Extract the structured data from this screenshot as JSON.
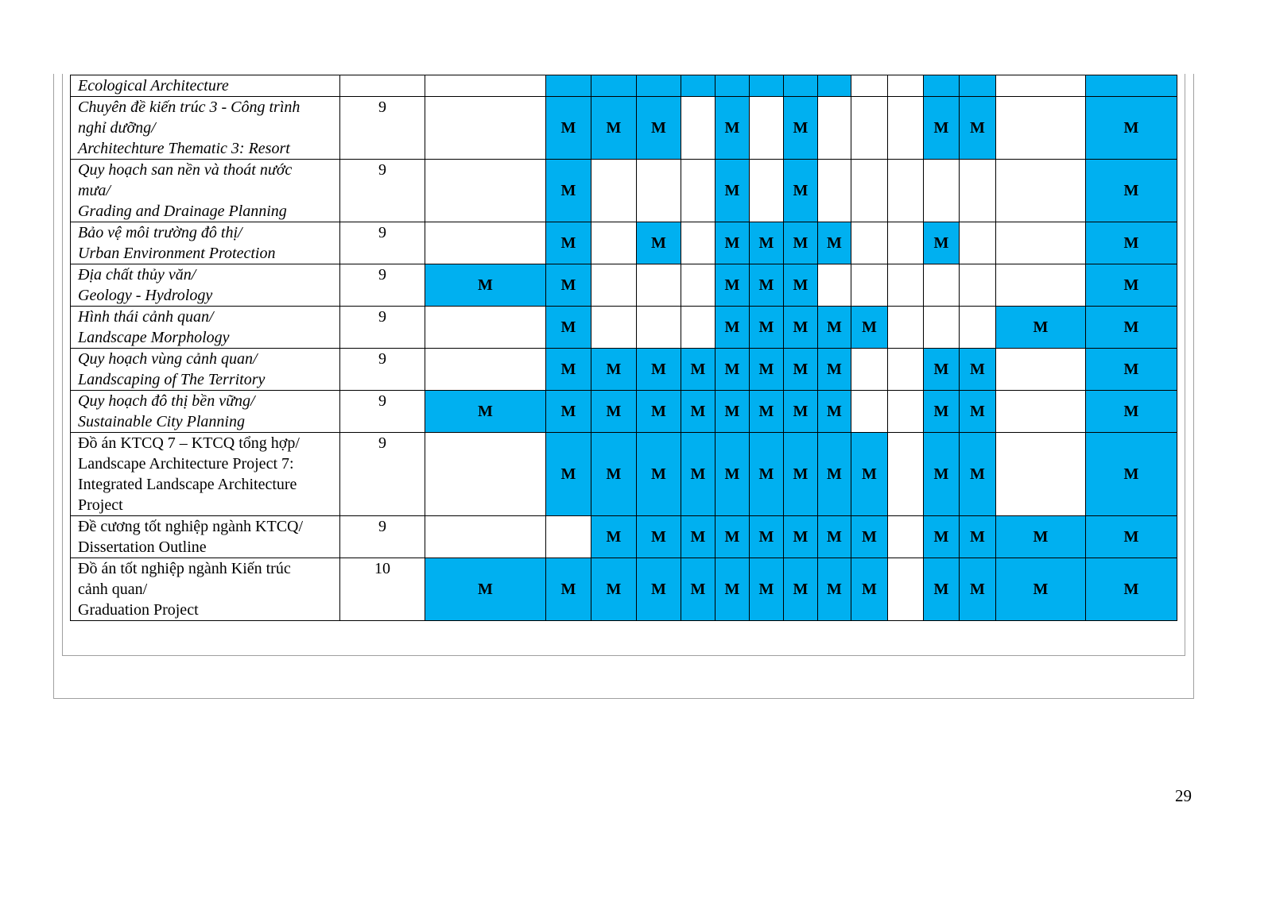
{
  "highlight_color": "#00B0F0",
  "mark_label": "M",
  "rows": [
    {
      "name": [
        "Ecological Architecture"
      ],
      "italic": true,
      "semester": "",
      "cells": [
        "",
        "",
        "",
        "",
        "",
        "",
        "",
        "",
        "",
        "",
        "",
        "",
        "",
        "",
        ""
      ],
      "filled": [
        false,
        true,
        true,
        true,
        true,
        true,
        true,
        true,
        true,
        false,
        false,
        true,
        true,
        false,
        true
      ]
    },
    {
      "name": [
        "Chuyên đề kiến trúc 3 - Công trình",
        "nghỉ dưỡng/",
        "Architechture Thematic 3: Resort"
      ],
      "italic": true,
      "semester": "9",
      "cells": [
        "",
        "M",
        "M",
        "M",
        "",
        "M",
        "",
        "M",
        "",
        "",
        "",
        "M",
        "M",
        "",
        "M"
      ]
    },
    {
      "name": [
        "Quy hoạch san nền và thoát nước",
        "mưa/",
        "Grading and Drainage Planning"
      ],
      "italic": true,
      "semester": "9",
      "cells": [
        "",
        "M",
        "",
        "",
        "",
        "M",
        "",
        "M",
        "",
        "",
        "",
        "",
        "",
        "",
        "M"
      ]
    },
    {
      "name": [
        "Bảo vệ môi trường đô thị/",
        "Urban Environment Protection"
      ],
      "italic": true,
      "semester": "9",
      "cells": [
        "",
        "M",
        "",
        "M",
        "",
        "M",
        "M",
        "M",
        "M",
        "",
        "",
        "M",
        "",
        "",
        "M"
      ]
    },
    {
      "name": [
        "Địa chất thủy văn/",
        "Geology - Hydrology"
      ],
      "italic": true,
      "semester": "9",
      "cells": [
        "M",
        "M",
        "",
        "",
        "",
        "M",
        "M",
        "M",
        "",
        "",
        "",
        "",
        "",
        "",
        "M"
      ]
    },
    {
      "name": [
        "Hình thái cảnh quan/",
        "Landscape Morphology"
      ],
      "italic": true,
      "semester": "9",
      "cells": [
        "",
        "M",
        "",
        "",
        "",
        "M",
        "M",
        "M",
        "M",
        "M",
        "",
        "",
        "",
        "M",
        "M"
      ]
    },
    {
      "name": [
        "Quy hoạch vùng cảnh quan/",
        "Landscaping of The Territory"
      ],
      "italic": true,
      "semester": "9",
      "cells": [
        "",
        "M",
        "M",
        "M",
        "M",
        "M",
        "M",
        "M",
        "M",
        "",
        "",
        "M",
        "M",
        "",
        "M"
      ]
    },
    {
      "name": [
        "Quy hoạch đô thị bền vững/",
        "Sustainable City Planning"
      ],
      "italic": true,
      "semester": "9",
      "cells": [
        "M",
        "M",
        "M",
        "M",
        "M",
        "M",
        "M",
        "M",
        "M",
        "",
        "",
        "M",
        "M",
        "",
        "M"
      ]
    },
    {
      "name": [
        "Đồ án KTCQ 7 – KTCQ tổng hợp/",
        "Landscape Architecture Project 7:",
        "Integrated Landscape Architecture",
        "Project"
      ],
      "italic": false,
      "semester": "9",
      "cells": [
        "",
        "M",
        "M",
        "M",
        "M",
        "M",
        "M",
        "M",
        "M",
        "M",
        "",
        "M",
        "M",
        "",
        "M"
      ]
    },
    {
      "name": [
        "Đề cương tốt nghiệp ngành KTCQ/",
        "Dissertation Outline"
      ],
      "italic": false,
      "semester": "9",
      "cells": [
        "",
        "",
        "M",
        "M",
        "M",
        "M",
        "M",
        "M",
        "M",
        "M",
        "",
        "M",
        "M",
        "M",
        "M"
      ]
    },
    {
      "name": [
        "Đồ án tốt nghiệp ngành Kiến trúc",
        "cảnh quan/",
        "Graduation Project"
      ],
      "italic": false,
      "semester": "10",
      "cells": [
        "M",
        "M",
        "M",
        "M",
        "M",
        "M",
        "M",
        "M",
        "M",
        "M",
        "",
        "M",
        "M",
        "M",
        "M"
      ]
    }
  ],
  "page_number": "29"
}
